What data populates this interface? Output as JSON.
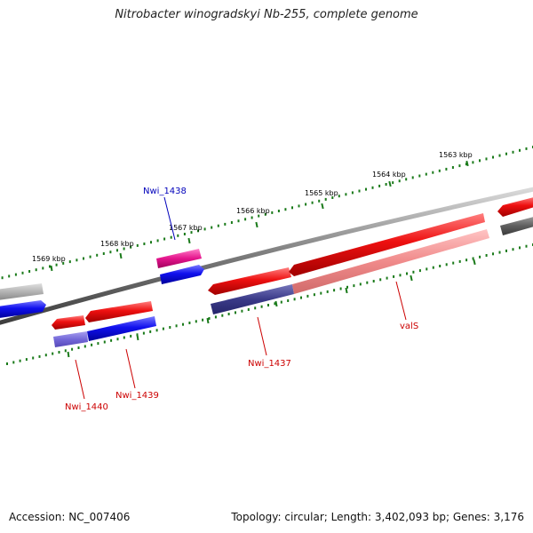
{
  "title": "Nitrobacter winogradskyi Nb-255, complete genome",
  "footer": {
    "accession": "Accession: NC_007406",
    "summary": "Topology: circular; Length: 3,402,093 bp; Genes: 3,176"
  },
  "scale_labels": [
    "1563 kbp",
    "1564 kbp",
    "1565 kbp",
    "1566 kbp",
    "1567 kbp",
    "1568 kbp",
    "1569 kbp"
  ],
  "gene_labels": {
    "nwi_1438": "Nwi_1438",
    "nwi_1437": "Nwi_1437",
    "vals": "valS",
    "nwi_1439": "Nwi_1439",
    "nwi_1440": "Nwi_1440"
  },
  "colors": {
    "forward_gene": "#ee1111",
    "reverse_gene": "#1111ee",
    "tick": "#1a7a1a",
    "backbone": "#808080",
    "label_red": "#cc0000",
    "label_blue": "#0000bb"
  }
}
